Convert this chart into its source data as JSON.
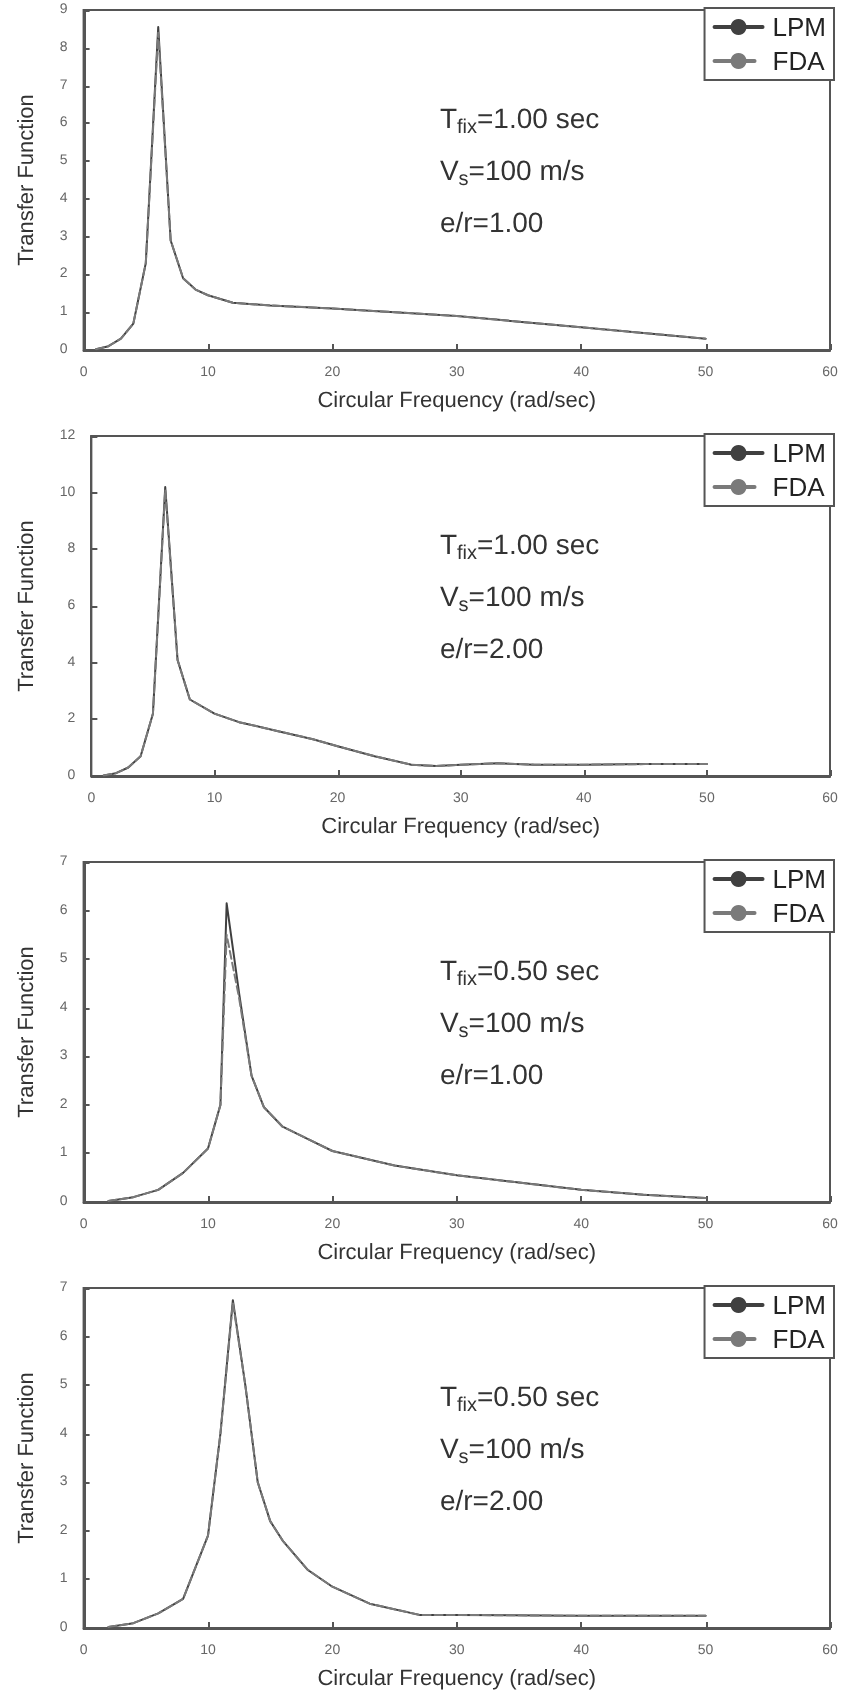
{
  "chart_data": [
    {
      "type": "line",
      "xlabel": "Circular Frequency (rad/sec)",
      "ylabel": "Transfer Function",
      "xlim": [
        0,
        60
      ],
      "xticks": [
        0,
        10,
        20,
        30,
        40,
        50,
        60
      ],
      "ylim": [
        0,
        9
      ],
      "yticks": [
        0,
        1,
        2,
        3,
        4,
        5,
        6,
        7,
        8,
        9
      ],
      "legend": "top right",
      "annotations": [
        "T$_{fix}$=1.00 sec",
        "V$_{s}$=100 m/s",
        "e/r=1.00"
      ],
      "x": [
        1,
        2,
        3,
        4,
        5,
        6,
        7,
        8,
        9,
        10,
        12,
        15,
        20,
        25,
        30,
        35,
        40,
        45,
        50
      ],
      "series": [
        {
          "name": "LPM",
          "color": "#404040",
          "line_style": "solid",
          "values": [
            0.02,
            0.1,
            0.3,
            0.7,
            2.3,
            8.55,
            2.9,
            1.9,
            1.6,
            1.45,
            1.25,
            1.18,
            1.1,
            1.0,
            0.9,
            0.75,
            0.6,
            0.45,
            0.3
          ]
        },
        {
          "name": "FDA",
          "color": "#7a7a7a",
          "line_style": "dashed",
          "values": [
            0.02,
            0.1,
            0.3,
            0.7,
            2.3,
            8.4,
            2.9,
            1.9,
            1.6,
            1.45,
            1.25,
            1.18,
            1.1,
            1.0,
            0.9,
            0.75,
            0.6,
            0.45,
            0.3
          ]
        }
      ]
    },
    {
      "type": "line",
      "xlabel": "Circular Frequency (rad/sec)",
      "ylabel": "Transfer Function",
      "xlim": [
        0,
        60
      ],
      "xticks": [
        0,
        10,
        20,
        30,
        40,
        50,
        60
      ],
      "ylim": [
        0,
        12
      ],
      "yticks": [
        0,
        2,
        4,
        6,
        8,
        10,
        12
      ],
      "legend": "top right",
      "annotations": [
        "T$_{fix}$=1.00 sec",
        "V$_{s}$=100 m/s",
        "e/r=2.00"
      ],
      "x": [
        1,
        2,
        3,
        4,
        5,
        6,
        7,
        8,
        10,
        12,
        15,
        18,
        20,
        23,
        26,
        28,
        30,
        33,
        36,
        40,
        45,
        50
      ],
      "series": [
        {
          "name": "LPM",
          "color": "#404040",
          "line_style": "solid",
          "values": [
            0.02,
            0.1,
            0.3,
            0.7,
            2.2,
            10.2,
            4.1,
            2.7,
            2.2,
            1.9,
            1.6,
            1.3,
            1.05,
            0.7,
            0.4,
            0.35,
            0.4,
            0.45,
            0.4,
            0.4,
            0.42,
            0.42
          ]
        },
        {
          "name": "FDA",
          "color": "#7a7a7a",
          "line_style": "dashed",
          "values": [
            0.02,
            0.1,
            0.3,
            0.7,
            2.2,
            10.1,
            4.1,
            2.7,
            2.2,
            1.9,
            1.6,
            1.3,
            1.05,
            0.7,
            0.4,
            0.35,
            0.4,
            0.45,
            0.4,
            0.4,
            0.42,
            0.42
          ]
        }
      ]
    },
    {
      "type": "line",
      "xlabel": "Circular Frequency (rad/sec)",
      "ylabel": "Transfer Function",
      "xlim": [
        0,
        60
      ],
      "xticks": [
        0,
        10,
        20,
        30,
        40,
        50,
        60
      ],
      "ylim": [
        0,
        7
      ],
      "yticks": [
        0,
        1,
        2,
        3,
        4,
        5,
        6,
        7
      ],
      "legend": "top right",
      "annotations": [
        "T$_{fix}$=0.50 sec",
        "V$_{s}$=100 m/s",
        "e/r=1.00"
      ],
      "x": [
        2,
        4,
        6,
        8,
        10,
        11,
        11.5,
        12.5,
        13.5,
        14.5,
        16,
        18,
        20,
        25,
        30,
        35,
        40,
        45,
        50
      ],
      "series": [
        {
          "name": "LPM",
          "color": "#404040",
          "line_style": "solid",
          "values": [
            0.02,
            0.1,
            0.25,
            0.6,
            1.1,
            2.0,
            6.15,
            4.3,
            2.6,
            1.95,
            1.55,
            1.3,
            1.05,
            0.75,
            0.55,
            0.4,
            0.25,
            0.15,
            0.08
          ]
        },
        {
          "name": "FDA",
          "color": "#7a7a7a",
          "line_style": "dashed",
          "values": [
            0.02,
            0.1,
            0.25,
            0.6,
            1.1,
            2.0,
            5.5,
            4.2,
            2.6,
            1.95,
            1.55,
            1.3,
            1.05,
            0.75,
            0.55,
            0.4,
            0.25,
            0.15,
            0.08
          ]
        }
      ]
    },
    {
      "type": "line",
      "xlabel": "Circular Frequency (rad/sec)",
      "ylabel": "Transfer Function",
      "xlim": [
        0,
        60
      ],
      "xticks": [
        0,
        10,
        20,
        30,
        40,
        50,
        60
      ],
      "ylim": [
        0,
        7
      ],
      "yticks": [
        0,
        1,
        2,
        3,
        4,
        5,
        6,
        7
      ],
      "legend": "top right",
      "annotations": [
        "T$_{fix}$=0.50 sec",
        "V$_{s}$=100 m/s",
        "e/r=2.00"
      ],
      "x": [
        2,
        4,
        6,
        8,
        10,
        11,
        12,
        13,
        14,
        15,
        16,
        18,
        20,
        23,
        27,
        30,
        40,
        50
      ],
      "series": [
        {
          "name": "LPM",
          "color": "#404040",
          "line_style": "solid",
          "values": [
            0.02,
            0.1,
            0.3,
            0.6,
            1.9,
            4.0,
            6.75,
            5.0,
            3.0,
            2.2,
            1.8,
            1.2,
            0.85,
            0.5,
            0.27,
            0.27,
            0.25,
            0.25
          ]
        },
        {
          "name": "FDA",
          "color": "#7a7a7a",
          "line_style": "dashed",
          "values": [
            0.02,
            0.1,
            0.3,
            0.6,
            1.9,
            4.0,
            6.7,
            5.0,
            3.0,
            2.2,
            1.8,
            1.2,
            0.85,
            0.5,
            0.27,
            0.27,
            0.25,
            0.25
          ]
        }
      ]
    }
  ]
}
